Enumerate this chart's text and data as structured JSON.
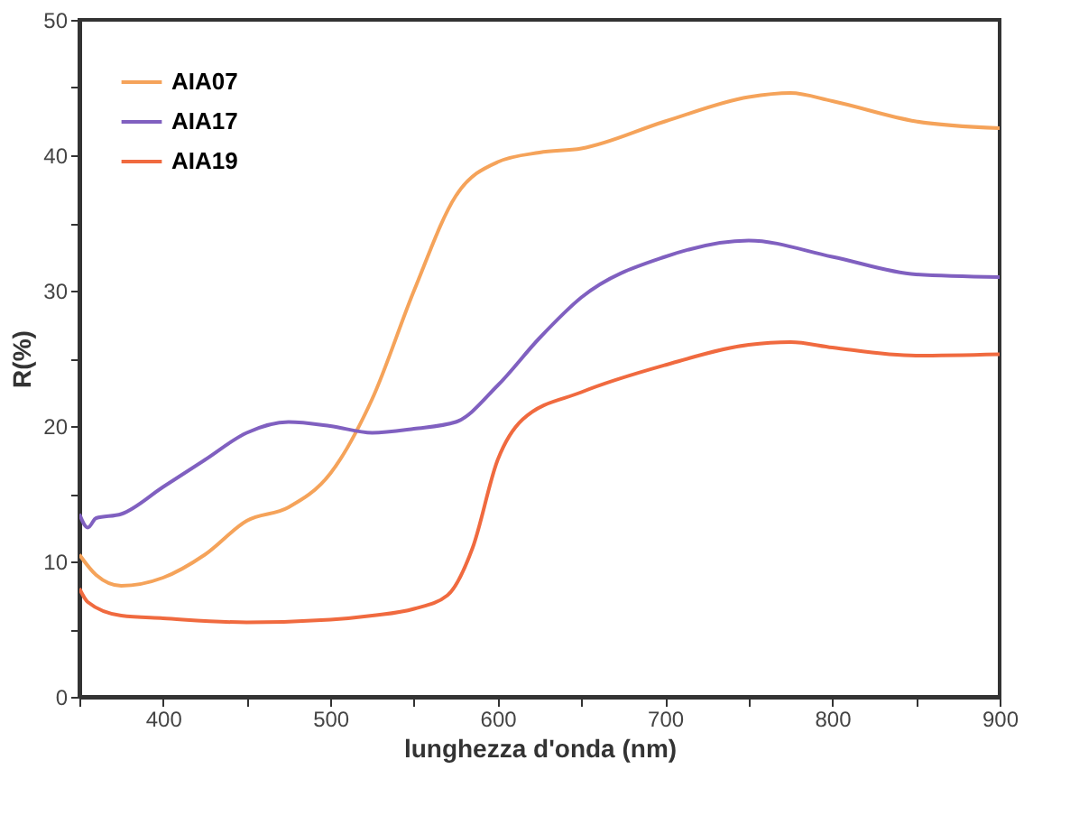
{
  "chart_data": {
    "type": "line",
    "xlabel": "lunghezza d'onda (nm)",
    "ylabel": "R(%)",
    "xlim": [
      350,
      900
    ],
    "xticks": [
      {
        "value": 350,
        "label": null
      },
      400,
      {
        "value": 450,
        "label": null
      },
      500,
      {
        "value": 550,
        "label": null
      },
      600,
      {
        "value": 650,
        "label": null
      },
      700,
      {
        "value": 750,
        "label": null
      },
      800,
      {
        "value": 850,
        "label": null
      },
      900
    ],
    "ylim": [
      0,
      50
    ],
    "yticks": [
      0,
      {
        "value": 5,
        "label": null
      },
      10,
      {
        "value": 15,
        "label": null
      },
      20,
      {
        "value": 25,
        "label": null
      },
      30,
      {
        "value": 35,
        "label": null
      },
      40,
      {
        "value": 45,
        "label": null
      },
      50
    ],
    "grid": false,
    "legend": "top left",
    "marker": "none",
    "line_style": "solid",
    "series": [
      {
        "name": "AIA07",
        "color": "#f5a35a",
        "x": [
          350,
          360,
          375,
          400,
          425,
          450,
          475,
          500,
          525,
          550,
          575,
          600,
          625,
          650,
          700,
          750,
          775,
          800,
          850,
          900
        ],
        "values": [
          10.5,
          9,
          8.2,
          8.8,
          10.5,
          13,
          14,
          16.5,
          22,
          30,
          37,
          39.5,
          40.2,
          40.5,
          42.5,
          44.3,
          44.6,
          44,
          42.5,
          42
        ]
      },
      {
        "name": "AIA17",
        "color": "#8060c0",
        "x": [
          350,
          355,
          360,
          375,
          400,
          425,
          450,
          475,
          500,
          525,
          550,
          575,
          600,
          625,
          650,
          700,
          750,
          800,
          850,
          900
        ],
        "values": [
          13.5,
          12.5,
          13.2,
          13.5,
          15.5,
          17.5,
          19.5,
          20.3,
          20,
          19.5,
          19.8,
          20.3,
          23,
          26.5,
          29.5,
          32.5,
          33.7,
          32.5,
          31.2,
          31
        ]
      },
      {
        "name": "AIA19",
        "color": "#f06a3f",
        "x": [
          350,
          355,
          375,
          400,
          450,
          500,
          525,
          550,
          570,
          585,
          600,
          615,
          650,
          700,
          750,
          775,
          800,
          850,
          900
        ],
        "values": [
          8,
          7,
          6,
          5.8,
          5.5,
          5.7,
          6,
          6.5,
          7.5,
          11,
          17.5,
          20.5,
          22.5,
          24.5,
          26,
          26.2,
          25.8,
          25.2,
          25.3
        ]
      }
    ]
  }
}
